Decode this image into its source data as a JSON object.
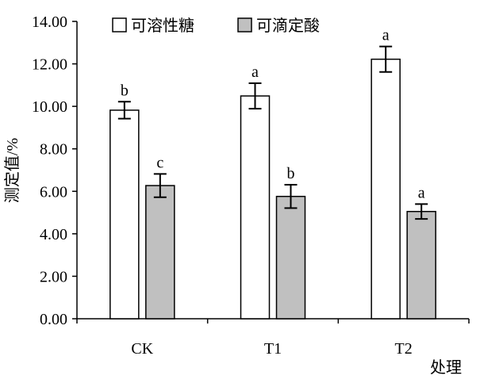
{
  "chart_data": {
    "type": "bar",
    "title": "",
    "xlabel": "处理",
    "ylabel": "测定值/%",
    "ylim": [
      0,
      14
    ],
    "yticks": [
      "0.00",
      "2.00",
      "4.00",
      "6.00",
      "8.00",
      "10.00",
      "12.00",
      "14.00"
    ],
    "categories": [
      "CK",
      "T1",
      "T2"
    ],
    "legend_position": "top",
    "series": [
      {
        "name": "可溶性糖",
        "color": "#ffffff",
        "values": [
          9.82,
          10.49,
          12.22
        ],
        "errors": [
          0.4,
          0.6,
          0.6
        ],
        "labels": [
          "b",
          "a",
          "a"
        ]
      },
      {
        "name": "可滴定酸",
        "color": "#c0c0c0",
        "values": [
          6.27,
          5.76,
          5.05
        ],
        "errors": [
          0.55,
          0.55,
          0.35
        ],
        "labels": [
          "c",
          "b",
          "a"
        ]
      }
    ]
  }
}
